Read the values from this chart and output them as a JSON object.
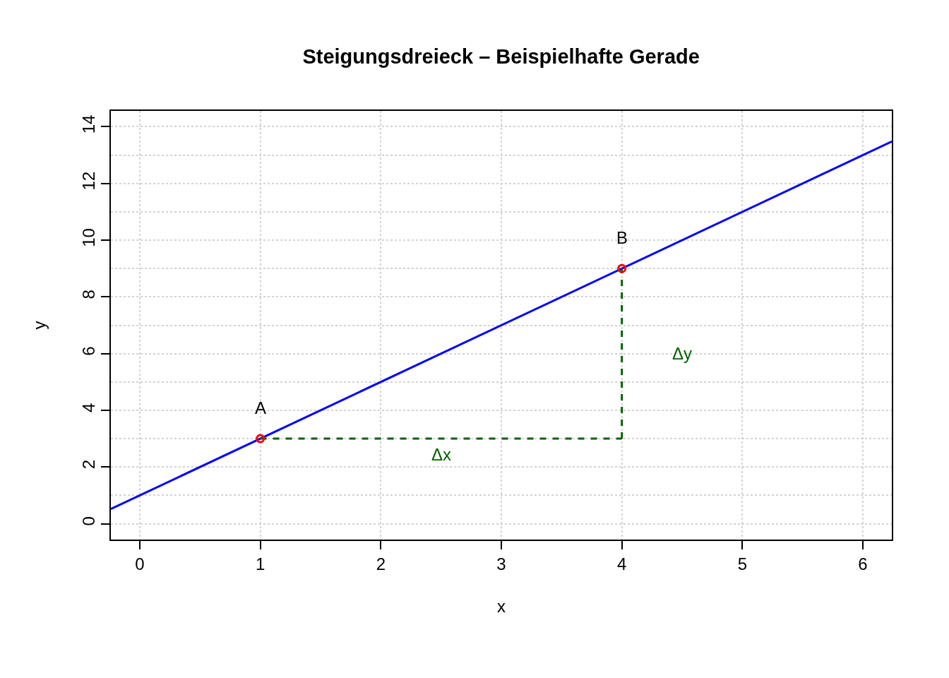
{
  "chart_data": {
    "type": "line",
    "title": "Steigungsdreieck – Beispielhafte Gerade",
    "xlabel": "x",
    "ylabel": "y",
    "xlim": [
      -0.24,
      6.24
    ],
    "xticks": [
      0,
      1,
      2,
      3,
      4,
      5,
      6
    ],
    "ylim": [
      -0.56,
      14.56
    ],
    "yticks": [
      0,
      {
        "value": 1,
        "label": null
      },
      2,
      {
        "value": 3,
        "label": null
      },
      4,
      {
        "value": 5,
        "label": null
      },
      6,
      {
        "value": 7,
        "label": null
      },
      8,
      {
        "value": 9,
        "label": null
      },
      10,
      {
        "value": 11,
        "label": null
      },
      12,
      {
        "value": 13,
        "label": null
      },
      14
    ],
    "grid": true,
    "legend": false,
    "series": [
      {
        "color": "#0000ff",
        "line_style": "solid",
        "x": [
          -0.24,
          6.24
        ],
        "values": [
          0.52,
          13.48
        ]
      },
      {
        "name": "Δx",
        "color": "#006400",
        "line_style": "dashed",
        "x": [
          1,
          4
        ],
        "values": [
          3,
          3
        ]
      },
      {
        "name": "Δy",
        "color": "#006400",
        "line_style": "dashed",
        "x": [
          4,
          4
        ],
        "values": [
          3,
          9
        ]
      },
      {
        "type": "scatter",
        "name": "A",
        "color": "#ff0000",
        "marker": "circle",
        "x": [
          1
        ],
        "values": [
          3
        ]
      },
      {
        "type": "scatter",
        "name": "B",
        "color": "#ff0000",
        "marker": "circle",
        "x": [
          4
        ],
        "values": [
          9
        ]
      }
    ]
  }
}
